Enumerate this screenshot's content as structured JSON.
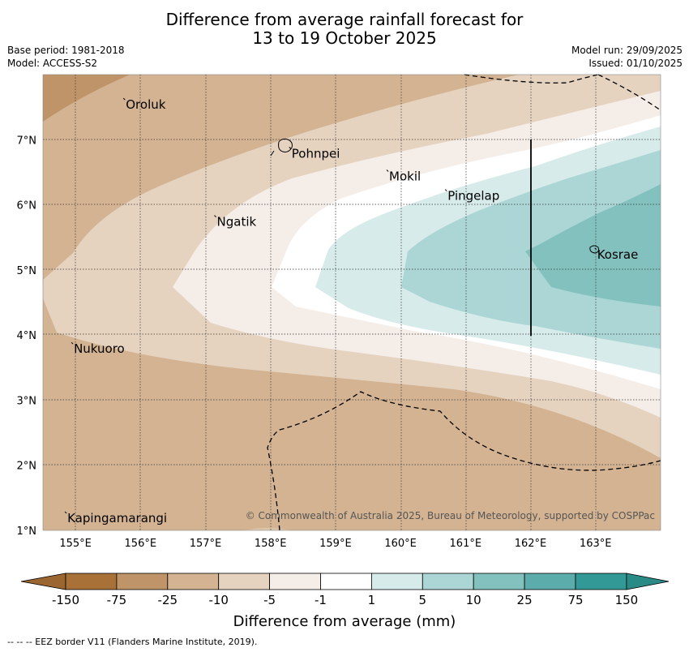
{
  "title": {
    "line1": "Difference from average rainfall forecast for",
    "line2": "13 to 19 October 2025"
  },
  "meta": {
    "base_period": "Base period: 1981-2018",
    "model": "Model: ACCESS-S2",
    "model_run": "Model run: 29/09/2025",
    "issued": "Issued: 01/10/2025"
  },
  "axes": {
    "lon_ticks": [
      "155°E",
      "156°E",
      "157°E",
      "158°E",
      "159°E",
      "160°E",
      "161°E",
      "162°E",
      "163°E"
    ],
    "lat_ticks": [
      "7°N",
      "6°N",
      "5°N",
      "4°N",
      "3°N",
      "2°N",
      "1°N"
    ]
  },
  "places": [
    {
      "name": "Oroluk",
      "lon": 155.75,
      "lat": 7.6
    },
    {
      "name": "Pohnpei",
      "lon": 158.3,
      "lat": 6.85
    },
    {
      "name": "Mokil",
      "lon": 159.8,
      "lat": 6.5
    },
    {
      "name": "Pingelap",
      "lon": 160.7,
      "lat": 6.2
    },
    {
      "name": "Ngatik",
      "lon": 157.15,
      "lat": 5.8
    },
    {
      "name": "Kosrae",
      "lon": 163.0,
      "lat": 5.3
    },
    {
      "name": "Nukuoro",
      "lon": 154.95,
      "lat": 3.85
    },
    {
      "name": "Kapingamarangi",
      "lon": 154.85,
      "lat": 1.25
    }
  ],
  "copyright": "© Commonwealth of Australia 2025, Bureau of Meteorology, supported by COSPPac",
  "colorbar": {
    "ticks": [
      "-150",
      "-75",
      "-25",
      "-10",
      "-5",
      "-1",
      "1",
      "5",
      "10",
      "25",
      "75",
      "150"
    ],
    "colors": [
      "#a87137",
      "#bf9468",
      "#d3b391",
      "#e5d3c0",
      "#f5ede8",
      "#ffffff",
      "#d7ebea",
      "#abd6d5",
      "#83c1bf",
      "#5bacaa",
      "#329996"
    ],
    "label": "Difference from average (mm)"
  },
  "footnote": "--  --  -- EEZ border V11 (Flanders Marine Institute, 2019)."
}
